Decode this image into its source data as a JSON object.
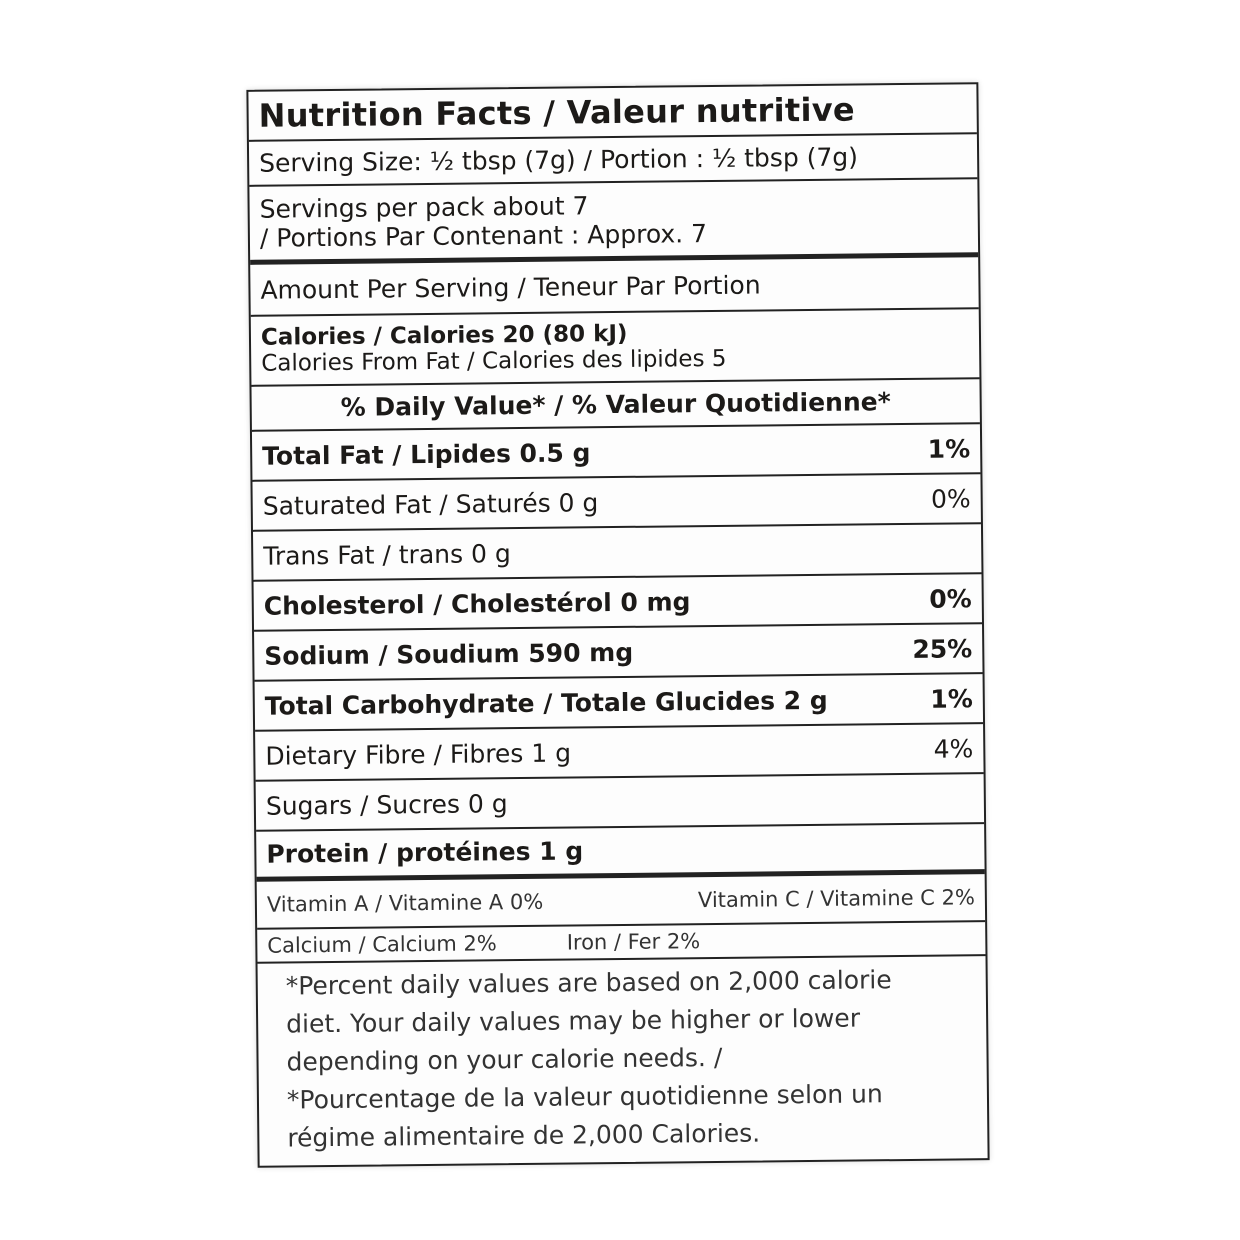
{
  "title": "Nutrition Facts / Valeur nutritive",
  "serving_size": "Serving Size: ½ tbsp (7g) / Portion : ½ tbsp (7g)",
  "servings_line1": "Servings per pack about 7",
  "servings_line2": "/ Portions Par Contenant : Approx. 7",
  "amount_per_serving": "Amount Per Serving / Teneur Par Portion",
  "calories": "Calories / Calories 20 (80 kJ)",
  "calories_from_fat": "Calories From Fat / Calories des lipides 5",
  "dv_header": "% Daily Value* / % Valeur Quotidienne*",
  "nutrients": [
    {
      "label": "Total Fat / Lipides 0.5 g",
      "dv": "1%",
      "bold": true
    },
    {
      "label": "Saturated Fat / Saturés  0 g",
      "dv": "0%",
      "bold": false
    },
    {
      "label": "Trans Fat / trans 0 g",
      "dv": "",
      "bold": false
    },
    {
      "label": "Cholesterol / Cholestérol 0 mg",
      "dv": "0%",
      "bold": true
    },
    {
      "label": "Sodium / Soudium 590 mg",
      "dv": "25%",
      "bold": true
    },
    {
      "label": "Total Carbohydrate / Totale Glucides 2 g",
      "dv": "1%",
      "bold": true
    },
    {
      "label": "Dietary Fibre / Fibres 1 g",
      "dv": "4%",
      "bold": false
    },
    {
      "label": "Sugars / Sucres 0 g",
      "dv": "",
      "bold": false
    },
    {
      "label": "Protein / protéines 1 g",
      "dv": "",
      "bold": true
    }
  ],
  "vitamins": [
    {
      "left": "Vitamin A / Vitamine A 0%",
      "right": "Vitamin C / Vitamine C 2%"
    },
    {
      "left": "Calcium / Calcium 2%",
      "right": "Iron / Fer 2%"
    }
  ],
  "footnote": [
    "*Percent daily values are based on 2,000 calorie",
    "diet. Your daily values may be higher or lower",
    "depending on your calorie needs. /",
    "*Pourcentage de la valeur quotidienne selon un",
    "régime alimentaire de 2,000 Calories."
  ]
}
